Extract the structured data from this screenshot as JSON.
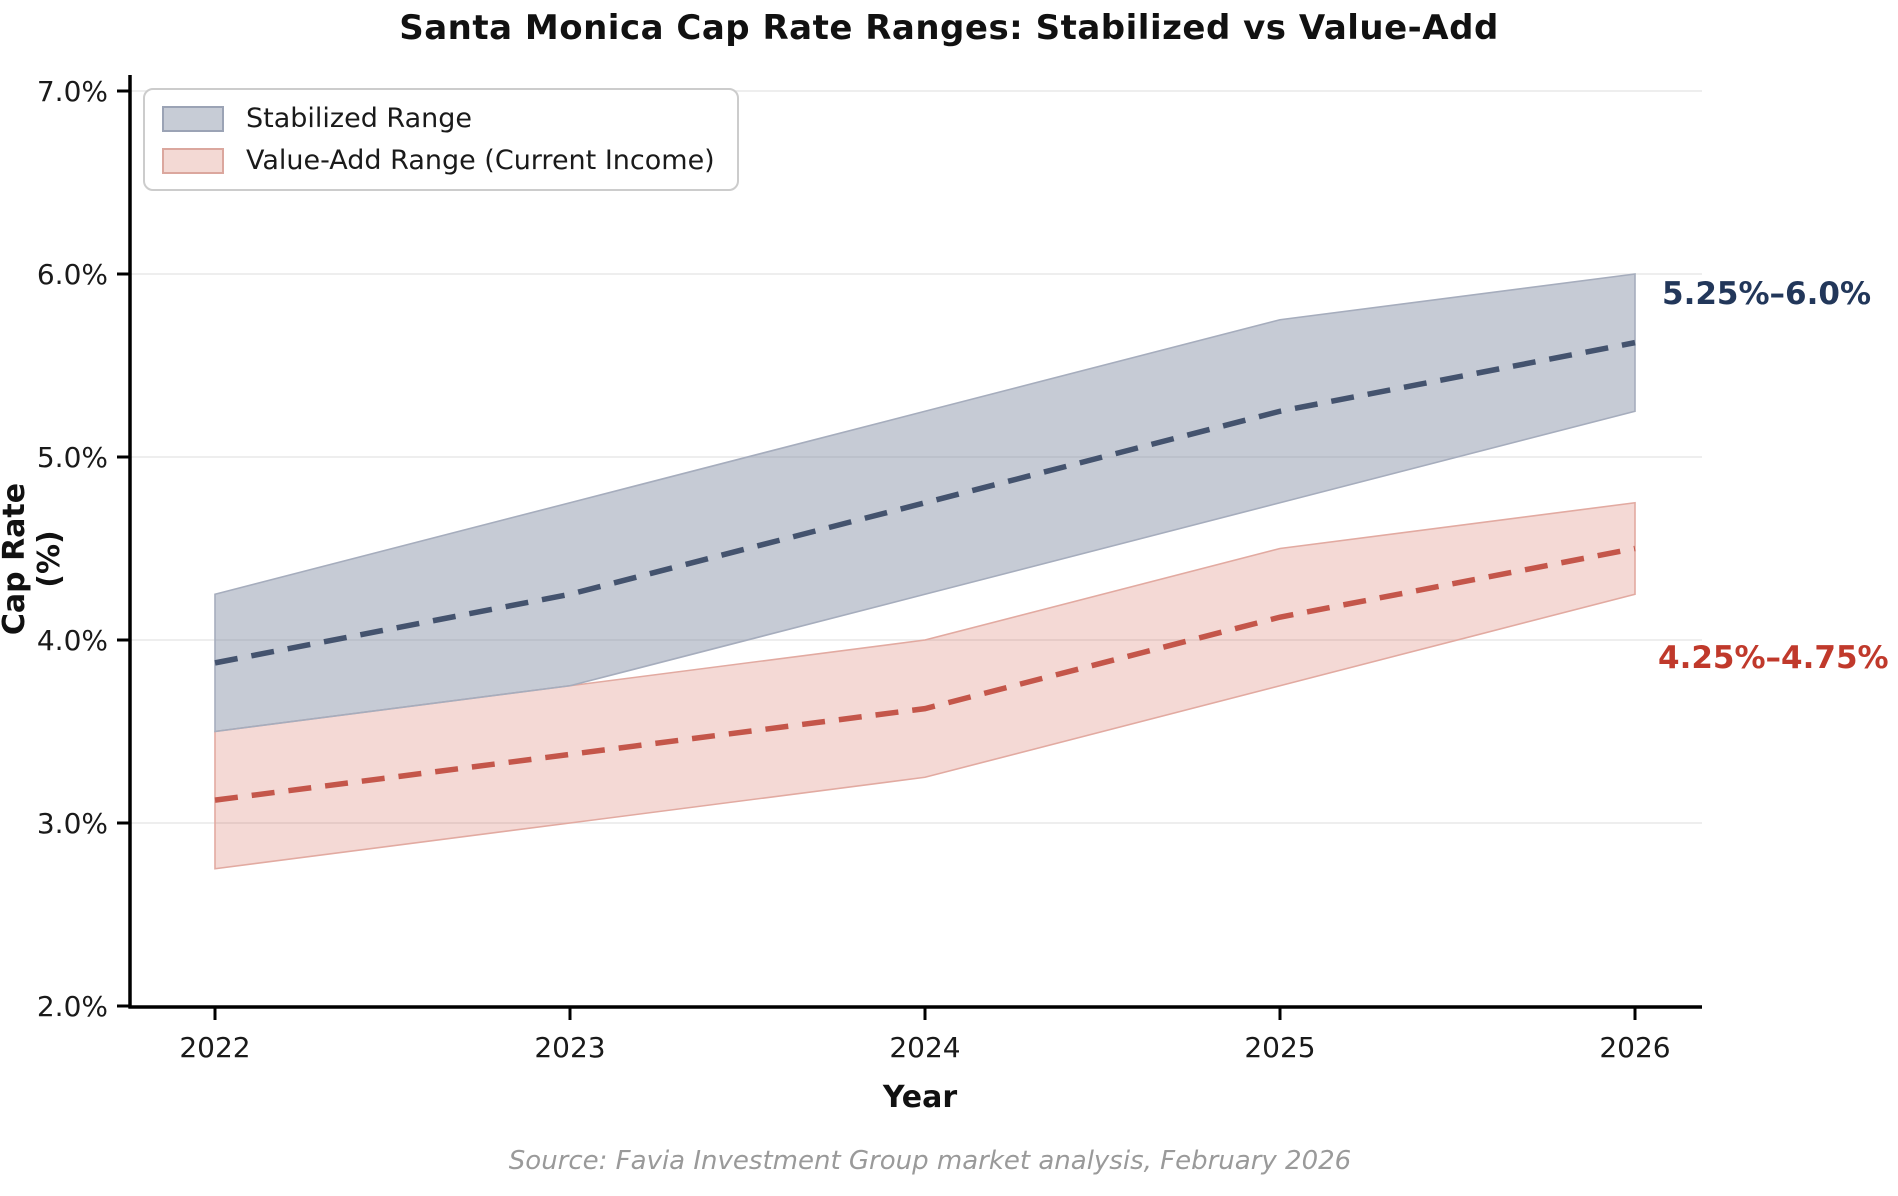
{
  "title": "Santa Monica Cap Rate Ranges: Stabilized vs Value-Add",
  "axes": {
    "xlabel": "Year",
    "ylabel": "Cap Rate (%)",
    "x_tick_values": [
      2022,
      2023,
      2024,
      2025,
      2026
    ],
    "x_tick_labels": [
      "2022",
      "2023",
      "2024",
      "2025",
      "2026"
    ],
    "y_tick_values": [
      7.0,
      6.0,
      5.0,
      4.0,
      3.0,
      2.0
    ],
    "y_tick_labels": [
      "7.0%",
      "6.0%",
      "5.0%",
      "4.0%",
      "3.0%",
      "2.0%"
    ]
  },
  "legend": [
    {
      "label": "Stabilized Range",
      "swatch_fill": "#c7ccd6",
      "swatch_border": "#9ba3b5"
    },
    {
      "label": "Value-Add Range (Current Income)",
      "swatch_fill": "#f3d9d4",
      "swatch_border": "#dba79e"
    }
  ],
  "annotations": [
    {
      "text": "5.25%–6.0%",
      "color": "#22375a"
    },
    {
      "text": "4.25%–4.75%",
      "color": "#c0392b"
    }
  ],
  "source": "Source: Favia Investment Group market analysis, February 2026",
  "colors": {
    "grid": "#e8e8e8",
    "axis": "#000000",
    "tick_text": "#1a1a1a",
    "source_text": "#9a9a9a"
  },
  "chart_data": {
    "type": "area",
    "subtype": "range-band-with-dashed-midline",
    "x": [
      2022,
      2023,
      2024,
      2025,
      2026
    ],
    "xlabel": "Year",
    "ylabel": "Cap Rate (%)",
    "ylim": [
      2.0,
      7.0
    ],
    "grid": true,
    "legend_position": "upper left",
    "series": [
      {
        "name": "Stabilized Range",
        "low": [
          3.5,
          3.75,
          4.25,
          4.75,
          5.25
        ],
        "high": [
          4.25,
          4.75,
          5.25,
          5.75,
          6.0
        ],
        "mid": [
          3.875,
          4.25,
          4.75,
          5.25,
          5.625
        ],
        "band_fill": "rgba(120,131,155,0.42)",
        "band_edge": "#a6adbd",
        "mid_line_color": "#44536e",
        "end_label": "5.25%–6.0%"
      },
      {
        "name": "Value-Add Range (Current Income)",
        "low": [
          2.75,
          3.0,
          3.25,
          3.75,
          4.25
        ],
        "high": [
          3.5,
          3.75,
          4.0,
          4.5,
          4.75
        ],
        "mid": [
          3.125,
          3.375,
          3.625,
          4.125,
          4.5
        ],
        "band_fill": "rgba(203,84,66,0.22)",
        "band_edge": "#e2aaa1",
        "mid_line_color": "#c4564a",
        "end_label": "4.25%–4.75%"
      }
    ]
  }
}
